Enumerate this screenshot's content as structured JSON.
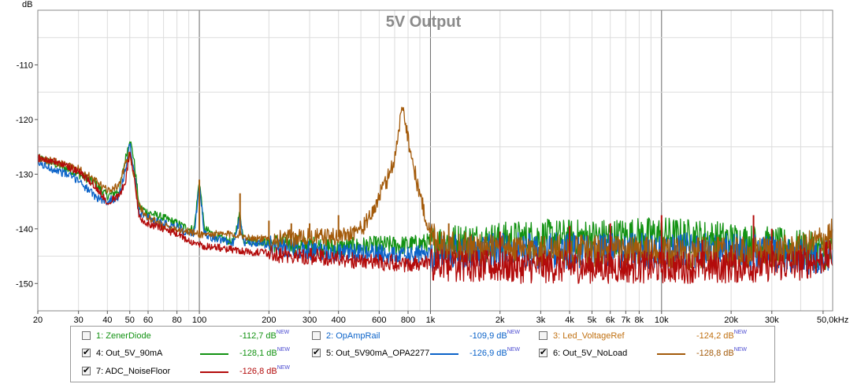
{
  "chart_data": {
    "type": "line",
    "title": "5V Output",
    "ylabel": "dB",
    "xscale": "log",
    "xlim": [
      20,
      55000
    ],
    "ylim": [
      -155,
      -100
    ],
    "grid": true,
    "x_ticks": [
      {
        "v": 20,
        "label": "20"
      },
      {
        "v": 30,
        "label": "30"
      },
      {
        "v": 40,
        "label": "40"
      },
      {
        "v": 50,
        "label": "50"
      },
      {
        "v": 60,
        "label": "60"
      },
      {
        "v": 80,
        "label": "80"
      },
      {
        "v": 100,
        "label": "100"
      },
      {
        "v": 200,
        "label": "200"
      },
      {
        "v": 300,
        "label": "300"
      },
      {
        "v": 400,
        "label": "400"
      },
      {
        "v": 600,
        "label": "600"
      },
      {
        "v": 800,
        "label": "800"
      },
      {
        "v": 1000,
        "label": "1k"
      },
      {
        "v": 2000,
        "label": "2k"
      },
      {
        "v": 3000,
        "label": "3k"
      },
      {
        "v": 4000,
        "label": "4k"
      },
      {
        "v": 5000,
        "label": "5k"
      },
      {
        "v": 6000,
        "label": "6k"
      },
      {
        "v": 7000,
        "label": "7k"
      },
      {
        "v": 8000,
        "label": "8k"
      },
      {
        "v": 10000,
        "label": "10k"
      },
      {
        "v": 20000,
        "label": "20k"
      },
      {
        "v": 30000,
        "label": "30k"
      },
      {
        "v": 50000,
        "label": "50,0kHz"
      }
    ],
    "y_ticks": [
      {
        "v": -110,
        "label": "-110"
      },
      {
        "v": -120,
        "label": "-120"
      },
      {
        "v": -130,
        "label": "-130"
      },
      {
        "v": -140,
        "label": "-140"
      },
      {
        "v": -150,
        "label": "-150"
      }
    ],
    "series": [
      {
        "name": "Out_5V_90mA",
        "color": "#129212",
        "noise": 2.2,
        "points": [
          [
            20,
            -127
          ],
          [
            25,
            -128.5
          ],
          [
            30,
            -130
          ],
          [
            35,
            -131.5
          ],
          [
            40,
            -134
          ],
          [
            45,
            -133
          ],
          [
            48,
            -127
          ],
          [
            50,
            -123.5
          ],
          [
            52,
            -127
          ],
          [
            55,
            -136
          ],
          [
            60,
            -137
          ],
          [
            70,
            -138
          ],
          [
            80,
            -139
          ],
          [
            90,
            -140
          ],
          [
            95,
            -140
          ],
          [
            100,
            -131
          ],
          [
            105,
            -140
          ],
          [
            120,
            -141.5
          ],
          [
            140,
            -142.5
          ],
          [
            150,
            -137
          ],
          [
            155,
            -142
          ],
          [
            200,
            -142.5
          ],
          [
            300,
            -143
          ],
          [
            400,
            -143.5
          ],
          [
            600,
            -143
          ],
          [
            800,
            -143
          ],
          [
            1000,
            -142.5
          ],
          [
            2000,
            -142
          ],
          [
            3000,
            -141.5
          ],
          [
            5000,
            -141.5
          ],
          [
            10000,
            -141
          ],
          [
            20000,
            -142
          ],
          [
            40000,
            -143.5
          ],
          [
            55000,
            -144.5
          ]
        ],
        "spikes": []
      },
      {
        "name": "Out_5V90mA_OPA2277",
        "color": "#0b63c9",
        "noise": 2.2,
        "points": [
          [
            20,
            -128
          ],
          [
            25,
            -129.5
          ],
          [
            30,
            -131
          ],
          [
            35,
            -134
          ],
          [
            40,
            -135
          ],
          [
            45,
            -134
          ],
          [
            48,
            -129
          ],
          [
            50,
            -124.5
          ],
          [
            52,
            -129
          ],
          [
            55,
            -137
          ],
          [
            60,
            -138
          ],
          [
            70,
            -139
          ],
          [
            80,
            -139.5
          ],
          [
            90,
            -141
          ],
          [
            95,
            -141
          ],
          [
            100,
            -131.5
          ],
          [
            105,
            -141
          ],
          [
            120,
            -142
          ],
          [
            140,
            -142.5
          ],
          [
            150,
            -138
          ],
          [
            155,
            -142.5
          ],
          [
            200,
            -143
          ],
          [
            300,
            -144
          ],
          [
            400,
            -144.5
          ],
          [
            600,
            -144.5
          ],
          [
            800,
            -145
          ],
          [
            1000,
            -144.5
          ],
          [
            2000,
            -144
          ],
          [
            3000,
            -144
          ],
          [
            5000,
            -144
          ],
          [
            10000,
            -144
          ],
          [
            20000,
            -144
          ],
          [
            40000,
            -145
          ],
          [
            55000,
            -145
          ]
        ],
        "spikes": []
      },
      {
        "name": "Out_5V_NoLoad",
        "color": "#a35a0a",
        "noise": 2.0,
        "points": [
          [
            20,
            -127
          ],
          [
            25,
            -128
          ],
          [
            30,
            -129
          ],
          [
            35,
            -131
          ],
          [
            40,
            -133
          ],
          [
            45,
            -132
          ],
          [
            48,
            -128
          ],
          [
            50,
            -126
          ],
          [
            52,
            -130
          ],
          [
            55,
            -136
          ],
          [
            60,
            -138
          ],
          [
            70,
            -139.5
          ],
          [
            80,
            -140
          ],
          [
            100,
            -141
          ],
          [
            150,
            -141
          ],
          [
            160,
            -141.5
          ],
          [
            200,
            -142
          ],
          [
            300,
            -141.5
          ],
          [
            400,
            -141.5
          ],
          [
            500,
            -140
          ],
          [
            550,
            -138
          ],
          [
            600,
            -134
          ],
          [
            650,
            -131
          ],
          [
            700,
            -127
          ],
          [
            730,
            -122
          ],
          [
            760,
            -117
          ],
          [
            790,
            -122
          ],
          [
            830,
            -127
          ],
          [
            880,
            -132
          ],
          [
            940,
            -137
          ],
          [
            1000,
            -141
          ],
          [
            1200,
            -143
          ],
          [
            1500,
            -143.5
          ],
          [
            2000,
            -144
          ],
          [
            5000,
            -144
          ],
          [
            10000,
            -144.5
          ],
          [
            20000,
            -144.5
          ],
          [
            40000,
            -144
          ],
          [
            55000,
            -141
          ]
        ],
        "spikes": [
          [
            100,
            -131
          ],
          [
            150,
            -133.5
          ],
          [
            200,
            -138.5
          ],
          [
            250,
            -139
          ],
          [
            300,
            -139
          ],
          [
            400,
            -137.5
          ],
          [
            500,
            -139.5
          ],
          [
            1000,
            -143
          ],
          [
            1200,
            -139
          ]
        ]
      },
      {
        "name": "ADC_NoiseFloor",
        "color": "#b30b0b",
        "noise": 2.0,
        "points": [
          [
            20,
            -127
          ],
          [
            25,
            -128
          ],
          [
            30,
            -129.5
          ],
          [
            35,
            -132
          ],
          [
            40,
            -135
          ],
          [
            45,
            -134
          ],
          [
            48,
            -131
          ],
          [
            50,
            -126
          ],
          [
            52,
            -130
          ],
          [
            55,
            -138
          ],
          [
            60,
            -139
          ],
          [
            70,
            -140
          ],
          [
            80,
            -141
          ],
          [
            100,
            -143
          ],
          [
            150,
            -144
          ],
          [
            200,
            -144.5
          ],
          [
            300,
            -145
          ],
          [
            500,
            -146
          ],
          [
            1000,
            -146.5
          ],
          [
            2000,
            -147
          ],
          [
            5000,
            -147
          ],
          [
            10000,
            -147
          ],
          [
            20000,
            -147
          ],
          [
            40000,
            -146.5
          ],
          [
            55000,
            -145
          ]
        ],
        "spikes": [
          [
            2000,
            -140.5
          ],
          [
            4000,
            -139.5
          ],
          [
            6000,
            -139
          ],
          [
            10000,
            -137.5
          ],
          [
            15000,
            -142
          ],
          [
            20000,
            -143
          ],
          [
            25000,
            -137.5
          ],
          [
            30000,
            -140
          ],
          [
            40000,
            -143
          ]
        ]
      }
    ],
    "legend": [
      {
        "label": "1: ZenerDiode",
        "value": "-112,7 dB",
        "color": "#129212",
        "checked": false
      },
      {
        "label": "2: OpAmpRail",
        "value": "-109,9 dB",
        "color": "#0b63c9",
        "checked": false
      },
      {
        "label": "3: Led_VoltageRef",
        "value": "-124,2 dB",
        "color": "#c07010",
        "checked": false
      },
      {
        "label": "4: Out_5V_90mA",
        "value": "-128,1 dB",
        "color": "#129212",
        "checked": true
      },
      {
        "label": "5: Out_5V90mA_OPA2277",
        "value": "-126,9 dB",
        "color": "#0b63c9",
        "checked": true
      },
      {
        "label": "6: Out_5V_NoLoad",
        "value": "-128,8 dB",
        "color": "#a35a0a",
        "checked": true
      },
      {
        "label": "7: ADC_NoiseFloor",
        "value": "-126,8 dB",
        "color": "#b30b0b",
        "checked": true
      }
    ],
    "value_suffix": "NEW"
  },
  "colors": {
    "grid": "#dcdcdc",
    "grid_major": "#6a6a6a",
    "axis_border": "#888888",
    "title": "#8a8a8a",
    "legend_text_dark": "#000000"
  }
}
